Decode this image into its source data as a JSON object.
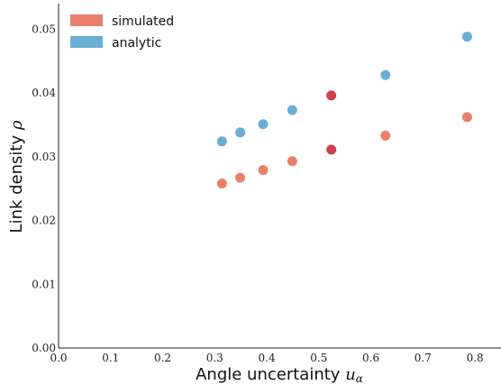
{
  "chart_data": {
    "type": "scatter",
    "xlabel": "Angle uncertainty",
    "xlabel_symbol": "u",
    "xlabel_subscript": "α",
    "ylabel": "Link density",
    "ylabel_symbol": "ρ",
    "xlim": [
      0.0,
      0.85
    ],
    "ylim": [
      0.0,
      0.054
    ],
    "x_ticks": [
      "0.0",
      "0.1",
      "0.2",
      "0.3",
      "0.4",
      "0.5",
      "0.6",
      "0.7",
      "0.8"
    ],
    "y_ticks": [
      "0.00",
      "0.01",
      "0.02",
      "0.03",
      "0.04",
      "0.05"
    ],
    "grid": false,
    "legend_position": "top-left",
    "series": [
      {
        "name": "simulated",
        "color": "#e8806a",
        "x": [
          0.314,
          0.349,
          0.393,
          0.449,
          0.524,
          0.628,
          0.785
        ],
        "y": [
          0.0258,
          0.0267,
          0.0279,
          0.0293,
          0.0311,
          0.0333,
          0.0362
        ]
      },
      {
        "name": "analytic",
        "color": "#6aaed6",
        "x": [
          0.314,
          0.349,
          0.393,
          0.449,
          0.524,
          0.628,
          0.785
        ],
        "y": [
          0.0324,
          0.0338,
          0.0351,
          0.0373,
          0.0396,
          0.0428,
          0.0488
        ]
      }
    ],
    "highlight_color": "#d0404a",
    "highlight_index": 4
  }
}
